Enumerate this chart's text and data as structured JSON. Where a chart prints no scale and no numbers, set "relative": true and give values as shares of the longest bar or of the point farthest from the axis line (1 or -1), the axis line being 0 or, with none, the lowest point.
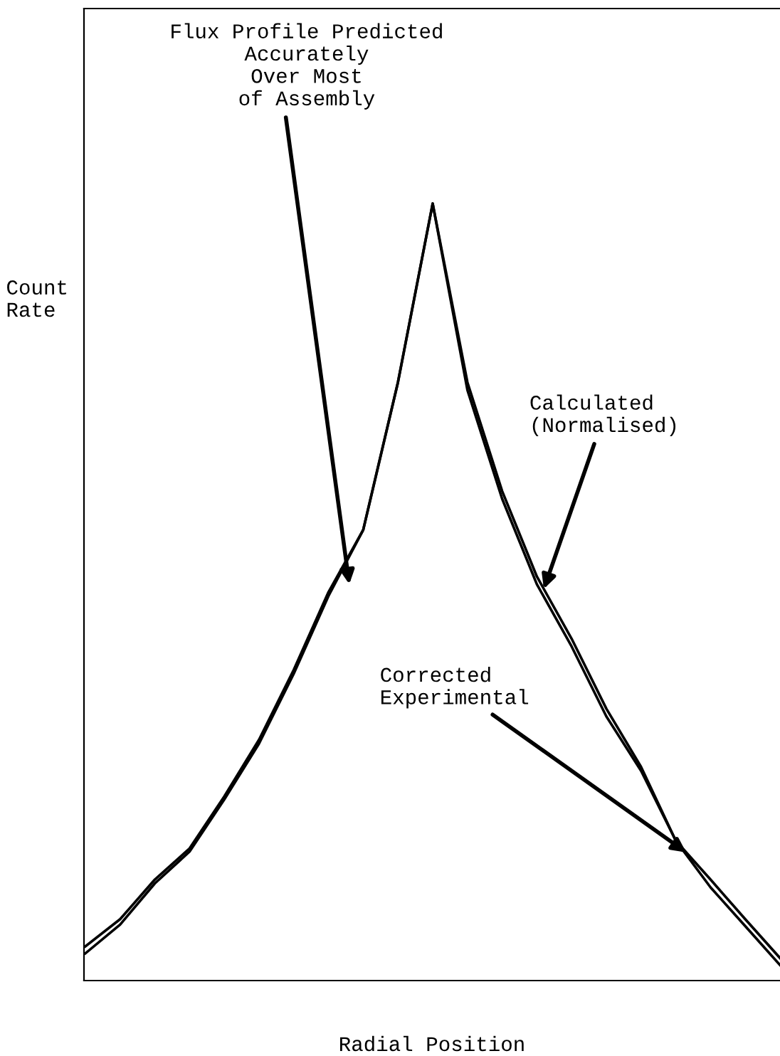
{
  "chart_data": {
    "type": "line",
    "relative": true,
    "xlabel": "Radial Position",
    "ylabel": "Count\nRate",
    "categories": [
      null,
      null,
      null,
      null,
      null,
      null,
      null,
      null,
      null,
      null,
      null,
      null,
      null,
      null,
      null,
      null,
      null,
      null,
      null,
      null,
      null
    ],
    "series": [
      {
        "name": "Corrected\nExperimental",
        "color": "#000000",
        "values": [
          0.044,
          0.079,
          0.13,
          0.17,
          0.237,
          0.31,
          0.4,
          0.5,
          0.58,
          0.77,
          1.0,
          0.76,
          0.62,
          0.51,
          0.43,
          0.34,
          0.27,
          0.18,
          0.13,
          0.079,
          0.029
        ]
      },
      {
        "name": "Calculated\n(Normalised)",
        "color": "#000000",
        "values": [
          0.035,
          0.072,
          0.125,
          0.166,
          0.233,
          0.305,
          0.395,
          0.495,
          0.58,
          0.77,
          1.0,
          0.77,
          0.63,
          0.52,
          0.44,
          0.35,
          0.275,
          0.18,
          0.12,
          0.07,
          0.02
        ]
      }
    ],
    "annotations": [
      "Flux Profile Predicted\nAccurately\nOver Most\nof Assembly"
    ],
    "marker": "none",
    "line_style": "solid"
  }
}
